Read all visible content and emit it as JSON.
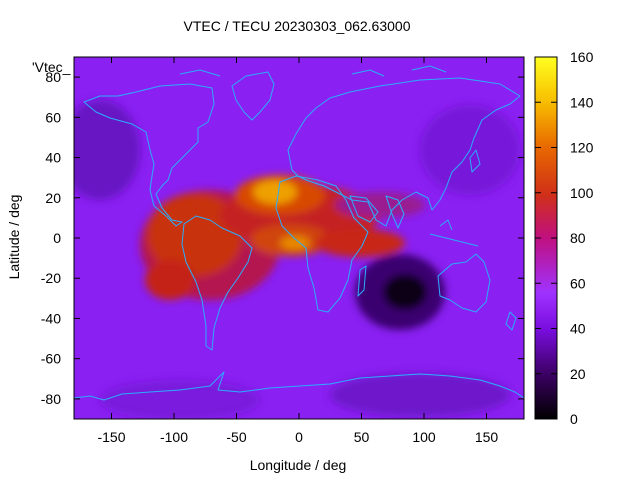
{
  "chart_data": {
    "type": "heatmap",
    "title": "VTEC / TECU 20230303_062.63000",
    "xlabel": "Longitude / deg",
    "ylabel": "Latitude / deg",
    "key_label": "'Vtec_",
    "xlim": [
      -180,
      180
    ],
    "ylim": [
      -90,
      90
    ],
    "x_ticks": [
      -150,
      -100,
      -50,
      0,
      50,
      100,
      150
    ],
    "y_ticks": [
      -80,
      -60,
      -40,
      -20,
      0,
      20,
      40,
      60,
      80
    ],
    "colorbar": {
      "range": [
        0,
        160
      ],
      "ticks": [
        0,
        20,
        40,
        60,
        80,
        100,
        120,
        140,
        160
      ],
      "palette": [
        "#000000",
        "#3a0060",
        "#7a0ee0",
        "#a032ff",
        "#c01080",
        "#d03018",
        "#e86800",
        "#f8c000",
        "#ffff20"
      ]
    },
    "features": [
      {
        "name": "equatorial anomaly peak north",
        "lon": -20,
        "lat": 22,
        "vtec": 120
      },
      {
        "name": "equatorial anomaly peak south",
        "lon": -10,
        "lat": -4,
        "vtec": 110
      },
      {
        "name": "american sector enhancement",
        "lon": -90,
        "lat": 0,
        "vtec": 95
      },
      {
        "name": "african / indian sector enhancement",
        "lon": 40,
        "lat": -5,
        "vtec": 90
      },
      {
        "name": "indian ocean depletion",
        "lon": 85,
        "lat": -28,
        "vtec": 12
      },
      {
        "name": "high-latitude background",
        "lon": 0,
        "lat": 75,
        "vtec": 40
      }
    ]
  },
  "colors": {
    "coastline": "#2aaeff",
    "background": "#ffffff"
  }
}
